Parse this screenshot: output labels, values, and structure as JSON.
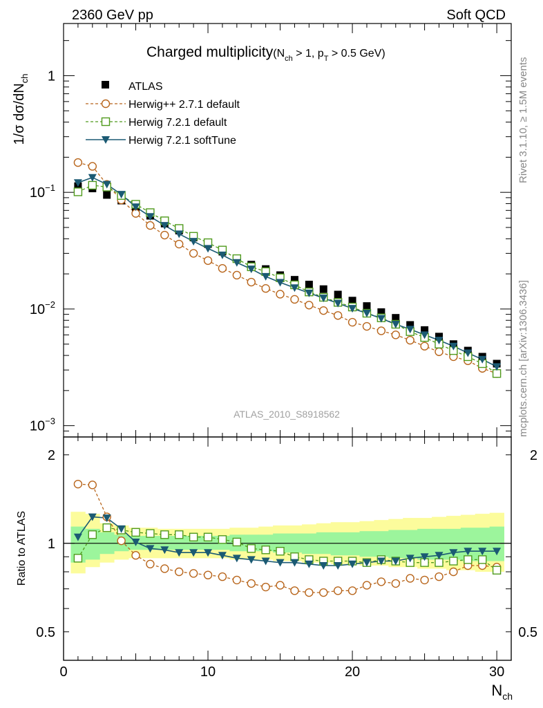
{
  "header": {
    "left": "2360 GeV pp",
    "right": "Soft QCD"
  },
  "side_labels": {
    "rivet": "Rivet 3.1.10, ≥ 1.5M events",
    "mcplots": "mcplots.cern.ch [arXiv:1306.3436]"
  },
  "title": {
    "main": "Charged multiplicity",
    "cond_open": "(N",
    "cond_sub1": "ch",
    "cond_mid": " > 1, p",
    "cond_sub2": "T",
    "cond_end": " > 0.5 GeV)"
  },
  "watermark": "ATLAS_2010_S8918562",
  "legend": {
    "atlas": "ATLAS",
    "herwigpp": "Herwig++ 2.7.1 default",
    "herwig7": "Herwig 7.2.1 default",
    "softtune": "Herwig 7.2.1 softTune"
  },
  "colors": {
    "atlas": "#000000",
    "herwigpp": "#b8651b",
    "herwig7": "#4f9a1c",
    "softtune": "#1b5a73",
    "band_inner": "#9cf59c",
    "band_outer": "#fcfc9c"
  },
  "axes": {
    "ylabel_main": "1/σ dσ/dN",
    "ylabel_main_sub": "ch",
    "ylabel_ratio": "Ratio to ATLAS",
    "xlabel": "N",
    "xlabel_sub": "ch",
    "yticks_main": [
      {
        "base": "1",
        "exp": ""
      },
      {
        "base": "10",
        "exp": "−1"
      },
      {
        "base": "10",
        "exp": "−2"
      },
      {
        "base": "10",
        "exp": "−3"
      }
    ],
    "yticks_ratio": [
      "2",
      "1",
      "0.5"
    ],
    "xticks": [
      "0",
      "10",
      "20",
      "30"
    ]
  },
  "chart_data": {
    "type": "scatter",
    "x": [
      1,
      2,
      3,
      4,
      5,
      6,
      7,
      8,
      9,
      10,
      11,
      12,
      13,
      14,
      15,
      16,
      17,
      18,
      19,
      20,
      21,
      22,
      23,
      24,
      25,
      26,
      27,
      28,
      29,
      30
    ],
    "main": {
      "yscale": "log",
      "xlim": [
        0,
        31
      ],
      "ylim": [
        0.0008,
        2.8
      ],
      "atlas": [
        0.113,
        0.108,
        0.095,
        0.085,
        0.073,
        0.063,
        0.054,
        0.047,
        0.041,
        0.036,
        0.031,
        0.027,
        0.024,
        0.022,
        0.0195,
        0.0178,
        0.0162,
        0.0148,
        0.0133,
        0.0118,
        0.0106,
        0.0094,
        0.0084,
        0.0073,
        0.0066,
        0.0058,
        0.005,
        0.0044,
        0.0039,
        0.0034
      ],
      "herwigpp": [
        0.18,
        0.167,
        0.117,
        0.086,
        0.066,
        0.052,
        0.043,
        0.036,
        0.03,
        0.026,
        0.0223,
        0.0195,
        0.017,
        0.015,
        0.0134,
        0.0121,
        0.0108,
        0.0097,
        0.0088,
        0.0077,
        0.0071,
        0.0065,
        0.006,
        0.0054,
        0.0048,
        0.0043,
        0.0039,
        0.0036,
        0.0031,
        0.0028
      ],
      "herwig7": [
        0.101,
        0.115,
        0.111,
        0.094,
        0.079,
        0.067,
        0.057,
        0.049,
        0.042,
        0.037,
        0.032,
        0.027,
        0.023,
        0.0209,
        0.0185,
        0.0161,
        0.014,
        0.0126,
        0.0114,
        0.0104,
        0.0092,
        0.0084,
        0.0074,
        0.0064,
        0.0057,
        0.005,
        0.0044,
        0.0039,
        0.0034,
        0.0028
      ],
      "softtune": [
        0.121,
        0.134,
        0.117,
        0.096,
        0.075,
        0.062,
        0.052,
        0.044,
        0.038,
        0.033,
        0.029,
        0.025,
        0.022,
        0.019,
        0.0169,
        0.0152,
        0.0137,
        0.0124,
        0.0112,
        0.0101,
        0.0092,
        0.0083,
        0.0074,
        0.0067,
        0.006,
        0.0054,
        0.0048,
        0.0042,
        0.0037,
        0.0032
      ]
    },
    "ratio": {
      "yscale": "log",
      "xlim": [
        0,
        31
      ],
      "ylim": [
        0.4,
        2.3
      ],
      "herwigpp": [
        1.59,
        1.58,
        1.23,
        1.02,
        0.91,
        0.85,
        0.82,
        0.8,
        0.79,
        0.78,
        0.77,
        0.75,
        0.73,
        0.71,
        0.72,
        0.69,
        0.68,
        0.68,
        0.69,
        0.69,
        0.72,
        0.74,
        0.73,
        0.76,
        0.75,
        0.77,
        0.8,
        0.84,
        0.84,
        0.83
      ],
      "herwig7": [
        0.89,
        1.07,
        1.13,
        1.11,
        1.09,
        1.08,
        1.07,
        1.07,
        1.05,
        1.05,
        1.03,
        1.01,
        0.96,
        0.95,
        0.94,
        0.9,
        0.88,
        0.87,
        0.87,
        0.87,
        0.86,
        0.88,
        0.87,
        0.86,
        0.86,
        0.86,
        0.87,
        0.88,
        0.88,
        0.81
      ],
      "softtune": [
        1.05,
        1.23,
        1.22,
        1.12,
        1.01,
        0.96,
        0.95,
        0.93,
        0.93,
        0.93,
        0.91,
        0.89,
        0.88,
        0.87,
        0.86,
        0.86,
        0.85,
        0.84,
        0.84,
        0.85,
        0.86,
        0.87,
        0.87,
        0.89,
        0.9,
        0.91,
        0.93,
        0.94,
        0.94,
        0.94
      ],
      "band_inner": [
        [
          0.86,
          1.14
        ],
        [
          0.88,
          1.12
        ],
        [
          0.92,
          1.09
        ],
        [
          0.94,
          1.07
        ],
        [
          0.95,
          1.06
        ],
        [
          0.95,
          1.06
        ],
        [
          0.95,
          1.06
        ],
        [
          0.95,
          1.06
        ],
        [
          0.95,
          1.06
        ],
        [
          0.95,
          1.06
        ],
        [
          0.95,
          1.06
        ],
        [
          0.94,
          1.07
        ],
        [
          0.94,
          1.07
        ],
        [
          0.94,
          1.07
        ],
        [
          0.93,
          1.08
        ],
        [
          0.93,
          1.08
        ],
        [
          0.92,
          1.08
        ],
        [
          0.92,
          1.09
        ],
        [
          0.91,
          1.09
        ],
        [
          0.91,
          1.09
        ],
        [
          0.9,
          1.1
        ],
        [
          0.9,
          1.1
        ],
        [
          0.89,
          1.11
        ],
        [
          0.89,
          1.11
        ],
        [
          0.88,
          1.12
        ],
        [
          0.88,
          1.12
        ],
        [
          0.88,
          1.12
        ],
        [
          0.87,
          1.13
        ],
        [
          0.87,
          1.13
        ],
        [
          0.87,
          1.14
        ]
      ],
      "band_outer": [
        [
          0.79,
          1.28
        ],
        [
          0.83,
          1.26
        ],
        [
          0.86,
          1.17
        ],
        [
          0.88,
          1.15
        ],
        [
          0.89,
          1.13
        ],
        [
          0.89,
          1.13
        ],
        [
          0.89,
          1.12
        ],
        [
          0.89,
          1.12
        ],
        [
          0.89,
          1.12
        ],
        [
          0.89,
          1.12
        ],
        [
          0.89,
          1.12
        ],
        [
          0.88,
          1.13
        ],
        [
          0.88,
          1.13
        ],
        [
          0.88,
          1.14
        ],
        [
          0.87,
          1.15
        ],
        [
          0.87,
          1.15
        ],
        [
          0.86,
          1.16
        ],
        [
          0.86,
          1.17
        ],
        [
          0.85,
          1.18
        ],
        [
          0.85,
          1.18
        ],
        [
          0.84,
          1.19
        ],
        [
          0.84,
          1.2
        ],
        [
          0.83,
          1.21
        ],
        [
          0.83,
          1.22
        ],
        [
          0.82,
          1.22
        ],
        [
          0.82,
          1.23
        ],
        [
          0.81,
          1.24
        ],
        [
          0.81,
          1.25
        ],
        [
          0.8,
          1.26
        ],
        [
          0.8,
          1.27
        ]
      ]
    }
  }
}
